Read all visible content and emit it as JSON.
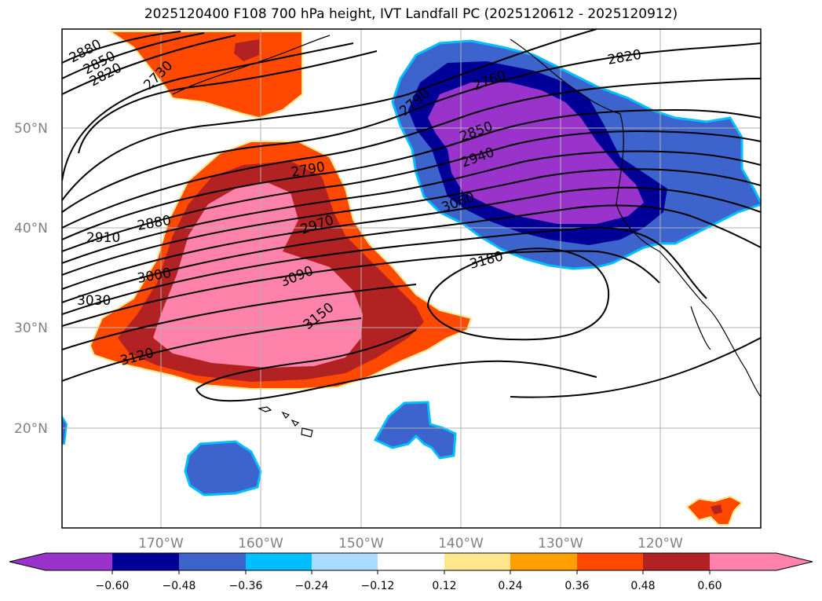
{
  "title": "2025120400 F108 700 hPa height, IVT Landfall PC (2025120612 - 2025120912)",
  "colors": {
    "purple": "#9933cc",
    "navy": "#000099",
    "royal": "#3c64cc",
    "deepsky": "#00bfff",
    "lightblue": "#aadcff",
    "white": "#ffffff",
    "yellow": "#ffe68c",
    "orange": "#ffa000",
    "orangered": "#ff4800",
    "firebrick": "#b22222",
    "pink": "#ff82aa"
  },
  "grid": {
    "lat_labels": [
      "50°N",
      "40°N",
      "30°N",
      "20°N"
    ],
    "lon_labels": [
      "170°W",
      "160°W",
      "150°W",
      "140°W",
      "130°W",
      "120°W"
    ]
  },
  "contour_labels": [
    "2880",
    "2850",
    "2820",
    "2730",
    "2760",
    "2790",
    "2850",
    "2940",
    "3060",
    "2820",
    "2790",
    "2880",
    "2910",
    "2970",
    "3000",
    "3030",
    "3090",
    "3150",
    "3120",
    "3180"
  ],
  "colorbar": {
    "ticks": [
      "−0.60",
      "−0.48",
      "−0.36",
      "−0.24",
      "−0.12",
      "0.12",
      "0.24",
      "0.36",
      "0.48",
      "0.60"
    ]
  }
}
